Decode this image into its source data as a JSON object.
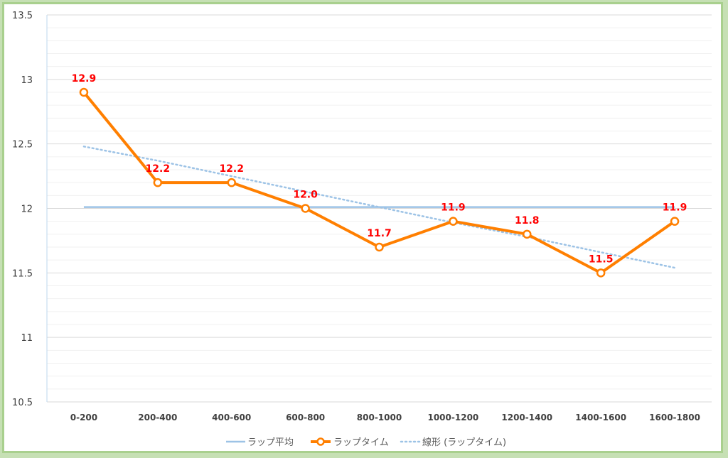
{
  "chart_data": {
    "type": "line",
    "categories": [
      "0-200",
      "200-400",
      "400-600",
      "600-800",
      "800-1000",
      "1000-1200",
      "1200-1400",
      "1400-1600",
      "1600-1800"
    ],
    "series": [
      {
        "name": "ラップタイム",
        "values": [
          12.9,
          12.2,
          12.2,
          12.0,
          11.7,
          11.9,
          11.8,
          11.5,
          11.9
        ],
        "data_labels": [
          "12.9",
          "12.2",
          "12.2",
          "12.0",
          "11.7",
          "11.9",
          "11.8",
          "11.5",
          "11.9"
        ],
        "color": "#ff7f00",
        "markers": true
      },
      {
        "name": "ラップ平均",
        "values": [
          12.01,
          12.01,
          12.01,
          12.01,
          12.01,
          12.01,
          12.01,
          12.01,
          12.01
        ],
        "color": "#9dc3e6",
        "style": "solid"
      },
      {
        "name": "線形 (ラップタイム)",
        "values": [
          12.48,
          12.37,
          12.25,
          12.13,
          12.01,
          11.89,
          11.78,
          11.66,
          11.54
        ],
        "color": "#9dc3e6",
        "style": "dotted",
        "kind": "trendline"
      }
    ],
    "y_ticks": [
      "13.5",
      "13",
      "12.5",
      "12",
      "11.5",
      "11",
      "10.5"
    ],
    "ylim": [
      10.5,
      13.5
    ],
    "grid": true,
    "legend_position": "bottom",
    "legend": [
      "ラップ平均",
      "ラップタイム",
      "線形 (ラップタイム)"
    ],
    "label_color": "#ff0000"
  }
}
